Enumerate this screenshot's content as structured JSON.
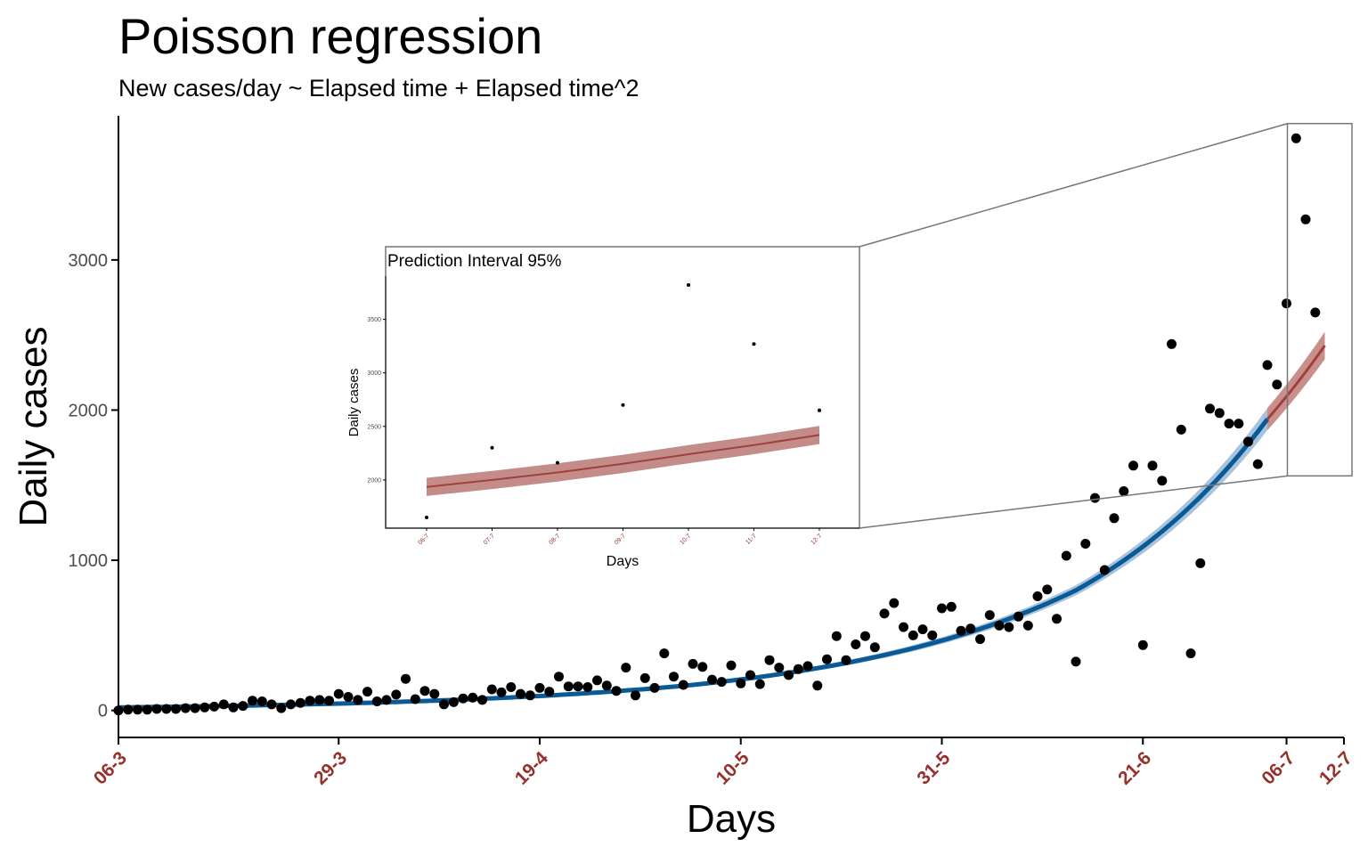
{
  "chart_data": {
    "type": "scatter",
    "title": "Poisson regression",
    "subtitle": "New cases/day ~ Elapsed time + Elapsed time^2",
    "xlabel": "Days",
    "ylabel": "Daily cases",
    "x_start_label": "06-3",
    "x_ticks": [
      "06-3",
      "29-3",
      "19-4",
      "10-5",
      "31-5",
      "21-6",
      "06-7",
      "12-7"
    ],
    "y_ticks": [
      0,
      1000,
      2000,
      3000
    ],
    "xlim": [
      "06-3",
      "12-7"
    ],
    "ylim": [
      -180,
      3960
    ],
    "grid": false,
    "observed_daily_cases": [
      0,
      5,
      5,
      5,
      10,
      10,
      10,
      15,
      15,
      20,
      25,
      40,
      20,
      30,
      65,
      60,
      40,
      15,
      40,
      50,
      65,
      70,
      65,
      110,
      90,
      70,
      125,
      60,
      70,
      105,
      210,
      75,
      130,
      110,
      40,
      55,
      80,
      85,
      70,
      140,
      120,
      155,
      110,
      100,
      150,
      125,
      225,
      160,
      160,
      155,
      200,
      165,
      130,
      285,
      100,
      215,
      150,
      380,
      225,
      170,
      310,
      290,
      205,
      190,
      300,
      180,
      235,
      175,
      335,
      285,
      235,
      275,
      295,
      165,
      340,
      495,
      335,
      440,
      495,
      420,
      645,
      715,
      555,
      500,
      540,
      500,
      680,
      690,
      530,
      545,
      475,
      635,
      565,
      555,
      625,
      565,
      760,
      805,
      610,
      1030,
      325,
      1110,
      1415,
      935,
      1280,
      1460,
      1630,
      435,
      1630,
      1530,
      2440,
      1870,
      380,
      980,
      2010,
      1980,
      1910,
      1910,
      1790,
      1640,
      2300,
      2170,
      2710,
      3810,
      3270,
      2650
    ],
    "fit_series": [
      {
        "name": "",
        "color": "#0a5a96",
        "band_color": "#a7c3dd",
        "day_range": [
          0,
          120
        ]
      },
      {
        "name": "",
        "color": "#a0403c",
        "band_color": "#c98f8b",
        "day_range": [
          120,
          126
        ]
      }
    ],
    "fit_curve_at_day": [
      {
        "day": 0,
        "value": 20
      },
      {
        "day": 60,
        "value": 170
      },
      {
        "day": 100,
        "value": 800
      },
      {
        "day": 120,
        "value": 1940
      },
      {
        "day": 126,
        "value": 2430
      }
    ],
    "inset": {
      "title": "Prediction Interval 95%",
      "xlabel": "Days",
      "ylabel": "Daily cases",
      "x_ticks": [
        "06-7",
        "07-7",
        "08-7",
        "09-7",
        "10-7",
        "11-7",
        "12-7"
      ],
      "y_ticks": [
        2000,
        2500,
        3000,
        3500
      ],
      "ylim": [
        1550,
        3920
      ],
      "points": [
        1650,
        2300,
        2160,
        2700,
        3820,
        3270,
        2650
      ],
      "fit": [
        1935,
        2000,
        2070,
        2150,
        2240,
        2325,
        2420
      ],
      "pi_half_width": 85
    },
    "colors": {
      "points": "#000000",
      "x_tick_labels": "#96302c",
      "axis": "#000000",
      "y_tick_labels": "#4d4d4d",
      "zoom_box": "#777777"
    }
  }
}
